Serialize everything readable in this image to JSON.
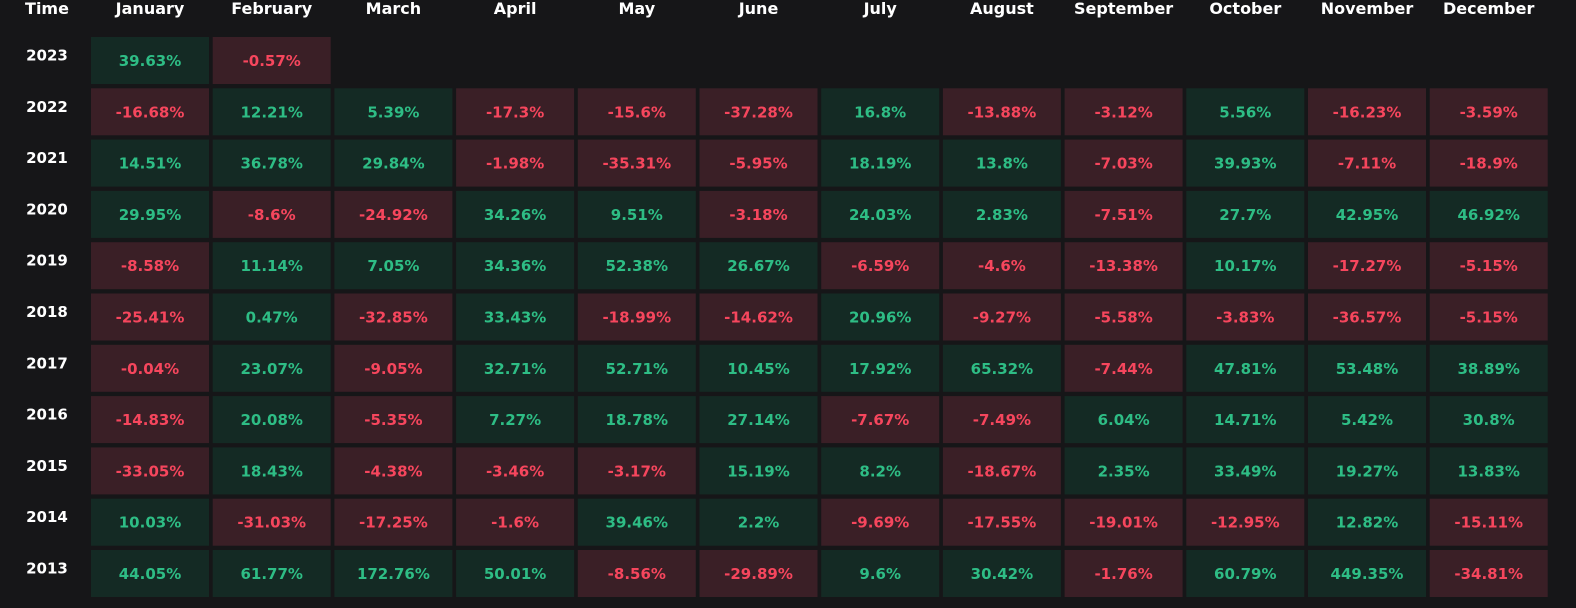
{
  "colors": {
    "background": "#161618",
    "positive_cell": "#142a24",
    "negative_cell": "#3a1f26",
    "positive_text": "#2ebd85",
    "negative_text": "#f6465d",
    "header_text": "#ffffff"
  },
  "chart_data": {
    "type": "heatmap",
    "title": "",
    "corner_label": "Time",
    "columns": [
      "January",
      "February",
      "March",
      "April",
      "May",
      "June",
      "July",
      "August",
      "September",
      "October",
      "November",
      "December"
    ],
    "rows": [
      "2023",
      "2022",
      "2021",
      "2020",
      "2019",
      "2018",
      "2017",
      "2016",
      "2015",
      "2014",
      "2013"
    ],
    "values": [
      [
        "39.63%",
        "-0.57%",
        null,
        null,
        null,
        null,
        null,
        null,
        null,
        null,
        null,
        null
      ],
      [
        "-16.68%",
        "12.21%",
        "5.39%",
        "-17.3%",
        "-15.6%",
        "-37.28%",
        "16.8%",
        "-13.88%",
        "-3.12%",
        "5.56%",
        "-16.23%",
        "-3.59%"
      ],
      [
        "14.51%",
        "36.78%",
        "29.84%",
        "-1.98%",
        "-35.31%",
        "-5.95%",
        "18.19%",
        "13.8%",
        "-7.03%",
        "39.93%",
        "-7.11%",
        "-18.9%"
      ],
      [
        "29.95%",
        "-8.6%",
        "-24.92%",
        "34.26%",
        "9.51%",
        "-3.18%",
        "24.03%",
        "2.83%",
        "-7.51%",
        "27.7%",
        "42.95%",
        "46.92%"
      ],
      [
        "-8.58%",
        "11.14%",
        "7.05%",
        "34.36%",
        "52.38%",
        "26.67%",
        "-6.59%",
        "-4.6%",
        "-13.38%",
        "10.17%",
        "-17.27%",
        "-5.15%"
      ],
      [
        "-25.41%",
        "0.47%",
        "-32.85%",
        "33.43%",
        "-18.99%",
        "-14.62%",
        "20.96%",
        "-9.27%",
        "-5.58%",
        "-3.83%",
        "-36.57%",
        "-5.15%"
      ],
      [
        "-0.04%",
        "23.07%",
        "-9.05%",
        "32.71%",
        "52.71%",
        "10.45%",
        "17.92%",
        "65.32%",
        "-7.44%",
        "47.81%",
        "53.48%",
        "38.89%"
      ],
      [
        "-14.83%",
        "20.08%",
        "-5.35%",
        "7.27%",
        "18.78%",
        "27.14%",
        "-7.67%",
        "-7.49%",
        "6.04%",
        "14.71%",
        "5.42%",
        "30.8%"
      ],
      [
        "-33.05%",
        "18.43%",
        "-4.38%",
        "-3.46%",
        "-3.17%",
        "15.19%",
        "8.2%",
        "-18.67%",
        "2.35%",
        "33.49%",
        "19.27%",
        "13.83%"
      ],
      [
        "10.03%",
        "-31.03%",
        "-17.25%",
        "-1.6%",
        "39.46%",
        "2.2%",
        "-9.69%",
        "-17.55%",
        "-19.01%",
        "-12.95%",
        "12.82%",
        "-15.11%"
      ],
      [
        "44.05%",
        "61.77%",
        "172.76%",
        "50.01%",
        "-8.56%",
        "-29.89%",
        "9.6%",
        "30.42%",
        "-1.76%",
        "60.79%",
        "449.35%",
        "-34.81%"
      ]
    ]
  }
}
